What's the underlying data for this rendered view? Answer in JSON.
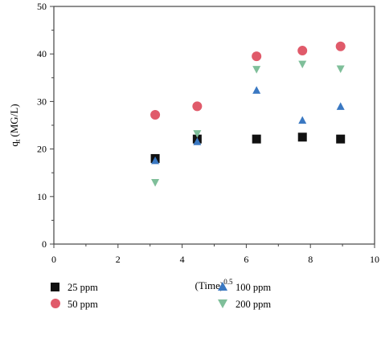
{
  "chart_data": {
    "type": "scatter",
    "title": "",
    "xlabel": "(Time)",
    "xlabel_superscript": "0.5",
    "ylabel": "q",
    "ylabel_subscript": "t",
    "ylabel_unit": "(MG/L)",
    "xlim": [
      0,
      10
    ],
    "ylim": [
      0,
      50
    ],
    "x_ticks": [
      0,
      2,
      4,
      6,
      8,
      10
    ],
    "y_ticks": [
      0,
      10,
      20,
      30,
      40,
      50
    ],
    "grid": false,
    "legend_position": "bottom",
    "series": [
      {
        "name": "25 ppm",
        "marker": "square",
        "color": "#111111",
        "points": [
          {
            "x": 3.16,
            "y": 18.0
          },
          {
            "x": 4.47,
            "y": 22.1
          },
          {
            "x": 6.32,
            "y": 22.1
          },
          {
            "x": 7.75,
            "y": 22.5
          },
          {
            "x": 8.94,
            "y": 22.1
          }
        ]
      },
      {
        "name": "50 ppm",
        "marker": "circle",
        "color": "#e05a6a",
        "points": [
          {
            "x": 3.16,
            "y": 27.2
          },
          {
            "x": 4.47,
            "y": 29.0
          },
          {
            "x": 6.32,
            "y": 39.5
          },
          {
            "x": 7.75,
            "y": 40.7
          },
          {
            "x": 8.94,
            "y": 41.6
          }
        ]
      },
      {
        "name": "100 ppm",
        "marker": "triangle-up",
        "color": "#3a78c2",
        "points": [
          {
            "x": 3.16,
            "y": 17.5
          },
          {
            "x": 4.47,
            "y": 21.5
          },
          {
            "x": 6.32,
            "y": 32.3
          },
          {
            "x": 7.75,
            "y": 26.0
          },
          {
            "x": 8.94,
            "y": 28.9
          }
        ]
      },
      {
        "name": "200 ppm",
        "marker": "triangle-down",
        "color": "#7fbf9a",
        "points": [
          {
            "x": 3.16,
            "y": 13.0
          },
          {
            "x": 4.47,
            "y": 23.3
          },
          {
            "x": 6.32,
            "y": 36.8
          },
          {
            "x": 7.75,
            "y": 37.9
          },
          {
            "x": 8.94,
            "y": 36.9
          }
        ]
      }
    ]
  }
}
